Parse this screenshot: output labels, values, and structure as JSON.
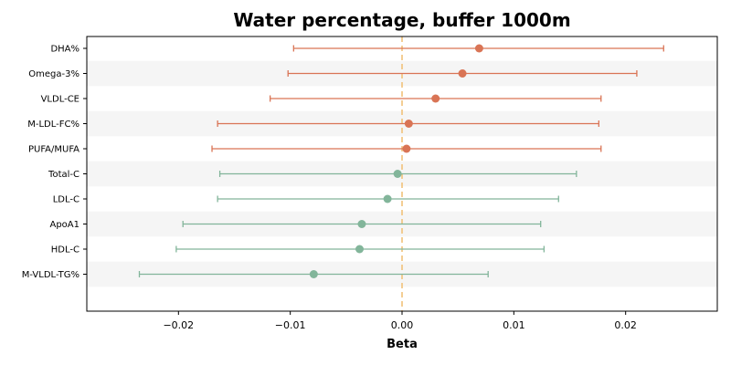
{
  "chart_data": {
    "type": "forest",
    "title": "Water percentage, buffer 1000m",
    "xlabel": "Beta",
    "ylabel": "",
    "xlim": [
      -0.0282,
      0.0282
    ],
    "xticks": [
      -0.02,
      -0.01,
      0.0,
      0.01,
      0.02
    ],
    "xtick_labels": [
      "−0.02",
      "−0.01",
      "0.00",
      "0.01",
      "0.02"
    ],
    "reference_line": 0,
    "grid": false,
    "colors": {
      "positive": "#d97455",
      "negative": "#82b59a",
      "reference": "#f2c27a",
      "band": "#f5f5f5"
    },
    "points": [
      {
        "label": "DHA%",
        "beta": 0.0069,
        "ci_low": -0.0097,
        "ci_high": 0.0234
      },
      {
        "label": "Omega-3%",
        "beta": 0.0054,
        "ci_low": -0.0102,
        "ci_high": 0.021
      },
      {
        "label": "VLDL-CE",
        "beta": 0.003,
        "ci_low": -0.0118,
        "ci_high": 0.0178
      },
      {
        "label": "M-LDL-FC%",
        "beta": 0.0006,
        "ci_low": -0.0165,
        "ci_high": 0.0176
      },
      {
        "label": "PUFA/MUFA",
        "beta": 0.0004,
        "ci_low": -0.017,
        "ci_high": 0.0178
      },
      {
        "label": "Total-C",
        "beta": -0.0004,
        "ci_low": -0.0163,
        "ci_high": 0.0156
      },
      {
        "label": "LDL-C",
        "beta": -0.0013,
        "ci_low": -0.0165,
        "ci_high": 0.014
      },
      {
        "label": "ApoA1",
        "beta": -0.0036,
        "ci_low": -0.0196,
        "ci_high": 0.0124
      },
      {
        "label": "HDL-C",
        "beta": -0.0038,
        "ci_low": -0.0202,
        "ci_high": 0.0127
      },
      {
        "label": "M-VLDL-TG%",
        "beta": -0.0079,
        "ci_low": -0.0235,
        "ci_high": 0.0077
      }
    ]
  }
}
